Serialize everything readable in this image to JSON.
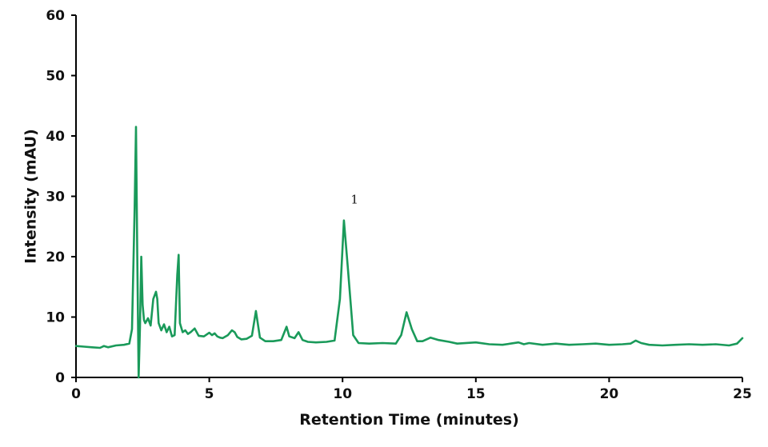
{
  "chart_data": {
    "type": "line",
    "xlabel": "Retention Time (minutes)",
    "ylabel": "Intensity (mAU)",
    "xlim": [
      0,
      25
    ],
    "ylim": [
      0,
      60
    ],
    "xticks": [
      0,
      5,
      10,
      15,
      20,
      25
    ],
    "yticks": [
      0,
      10,
      20,
      30,
      40,
      50,
      60
    ],
    "grid": false,
    "legend": "none",
    "line_color": "#1a9a5a",
    "series": [
      {
        "x": [
          0,
          0.3,
          0.6,
          0.9,
          1.05,
          1.2,
          1.5,
          1.8,
          2.0,
          2.1,
          2.2,
          2.25,
          2.3,
          2.35,
          2.4,
          2.45,
          2.5,
          2.55,
          2.6,
          2.7,
          2.8,
          2.9,
          3.0,
          3.05,
          3.1,
          3.2,
          3.3,
          3.4,
          3.5,
          3.6,
          3.7,
          3.8,
          3.85,
          3.9,
          4.0,
          4.1,
          4.2,
          4.3,
          4.45,
          4.6,
          4.8,
          5.0,
          5.1,
          5.2,
          5.3,
          5.4,
          5.5,
          5.7,
          5.85,
          5.95,
          6.05,
          6.2,
          6.4,
          6.6,
          6.75,
          6.9,
          7.1,
          7.4,
          7.7,
          7.9,
          8.0,
          8.2,
          8.35,
          8.5,
          8.7,
          9.0,
          9.4,
          9.7,
          9.9,
          10.05,
          10.2,
          10.4,
          10.6,
          11.0,
          11.5,
          12.0,
          12.2,
          12.4,
          12.6,
          12.8,
          13.0,
          13.3,
          13.6,
          14.0,
          14.3,
          15.0,
          15.5,
          16.0,
          16.3,
          16.6,
          16.8,
          17.0,
          17.5,
          18.0,
          18.5,
          19.0,
          19.5,
          20.0,
          20.5,
          20.8,
          21.0,
          21.2,
          21.5,
          22.0,
          22.5,
          23.0,
          23.5,
          24.0,
          24.5,
          24.8,
          25.0
        ],
        "y": [
          5.2,
          5.1,
          5.0,
          4.9,
          5.2,
          5.0,
          5.3,
          5.4,
          5.6,
          8.0,
          28.0,
          41.5,
          20.0,
          0.0,
          8.5,
          20.0,
          12.0,
          9.5,
          9.0,
          9.8,
          8.6,
          13.0,
          14.2,
          13.0,
          9.0,
          7.8,
          8.8,
          7.5,
          8.4,
          6.8,
          7.0,
          17.0,
          20.3,
          9.0,
          7.5,
          7.8,
          7.2,
          7.5,
          8.1,
          6.9,
          6.8,
          7.4,
          7.0,
          7.3,
          6.8,
          6.6,
          6.5,
          7.0,
          7.8,
          7.5,
          6.7,
          6.3,
          6.4,
          6.9,
          11.0,
          6.6,
          6.0,
          6.0,
          6.2,
          8.4,
          6.8,
          6.5,
          7.5,
          6.2,
          5.9,
          5.8,
          5.9,
          6.1,
          13.0,
          26.0,
          18.0,
          7.0,
          5.7,
          5.6,
          5.7,
          5.6,
          7.0,
          10.8,
          8.0,
          6.0,
          6.0,
          6.6,
          6.2,
          5.9,
          5.6,
          5.8,
          5.5,
          5.4,
          5.6,
          5.8,
          5.5,
          5.7,
          5.4,
          5.6,
          5.4,
          5.5,
          5.6,
          5.4,
          5.5,
          5.6,
          6.1,
          5.7,
          5.4,
          5.3,
          5.4,
          5.5,
          5.4,
          5.5,
          5.3,
          5.6,
          6.5
        ]
      }
    ],
    "annotations": [
      {
        "text": "1",
        "x": 10.45,
        "y": 28.8
      }
    ]
  }
}
